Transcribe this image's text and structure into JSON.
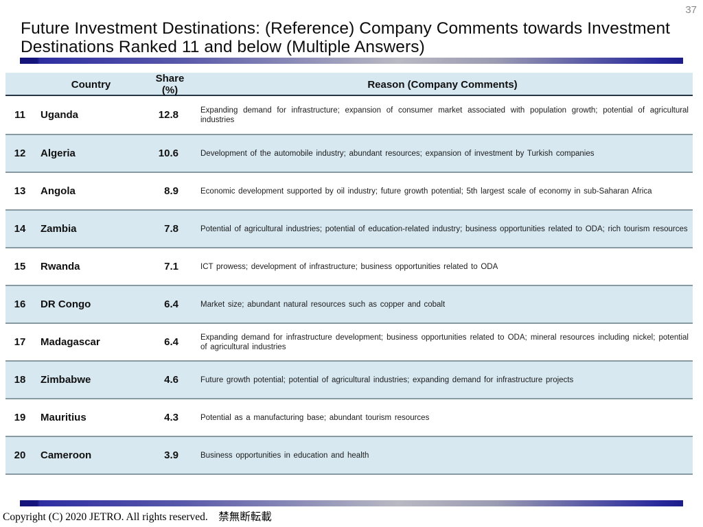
{
  "page_number": "37",
  "title": "Future Investment Destinations: (Reference) Company Comments towards Investment Destinations Ranked 11 and below (Multiple Answers)",
  "table": {
    "headers": {
      "rank": "",
      "country": "Country",
      "share": "Share (%)",
      "reason": "Reason (Company Comments)"
    },
    "rows": [
      {
        "rank": "11",
        "country": "Uganda",
        "share": "12.8",
        "reason": "Expanding demand for infrastructure; expansion of consumer market associated with population growth; potential of agricultural industries"
      },
      {
        "rank": "12",
        "country": "Algeria",
        "share": "10.6",
        "reason": "Development of the automobile industry; abundant resources; expansion of investment by Turkish companies"
      },
      {
        "rank": "13",
        "country": "Angola",
        "share": "8.9",
        "reason": "Economic development supported by oil industry; future growth potential; 5th largest scale of economy in sub-Saharan Africa"
      },
      {
        "rank": "14",
        "country": "Zambia",
        "share": "7.8",
        "reason": "Potential of agricultural industries; potential of education-related industry; business opportunities related to ODA; rich tourism resources"
      },
      {
        "rank": "15",
        "country": "Rwanda",
        "share": "7.1",
        "reason": "ICT prowess; development of infrastructure; business opportunities related to ODA"
      },
      {
        "rank": "16",
        "country": "DR Congo",
        "share": "6.4",
        "reason": "Market size; abundant natural resources such as copper and cobalt"
      },
      {
        "rank": "17",
        "country": "Madagascar",
        "share": "6.4",
        "reason": "Expanding demand for infrastructure development;  business opportunities related to ODA; mineral resources including nickel; potential of agricultural industries"
      },
      {
        "rank": "18",
        "country": "Zimbabwe",
        "share": "4.6",
        "reason": "Future growth potential; potential of agricultural industries; expanding demand for infrastructure projects"
      },
      {
        "rank": "19",
        "country": "Mauritius",
        "share": "4.3",
        "reason": "Potential as a manufacturing base; abundant tourism resources"
      },
      {
        "rank": "20",
        "country": "Cameroon",
        "share": "3.9",
        "reason": "Business opportunities in education and health"
      }
    ]
  },
  "footer": {
    "copyright": "Copyright (C) 2020 JETRO.  All rights reserved.　禁無断転載"
  },
  "colors": {
    "accent_navy": "#2e2ea1",
    "bar_middle_gray": "#b9b9c3",
    "row_alt_blue": "#d7e8f1",
    "separator_gray": "#879aa1",
    "header_underline": "#253545",
    "page_number_gray": "#8a8a8a"
  }
}
